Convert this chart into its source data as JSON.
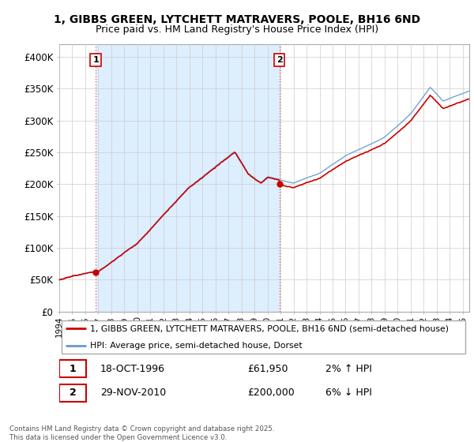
{
  "title1": "1, GIBBS GREEN, LYTCHETT MATRAVERS, POOLE, BH16 6ND",
  "title2": "Price paid vs. HM Land Registry's House Price Index (HPI)",
  "background_color": "#ffffff",
  "plot_bg_color": "#ffffff",
  "shaded_bg_color": "#ddeeff",
  "hatch_color": "#d8d8d8",
  "grid_color": "#cccccc",
  "sale1_date": 1996.8,
  "sale1_price": 61950,
  "sale1_label": "1",
  "sale2_date": 2010.92,
  "sale2_price": 200000,
  "sale2_label": "2",
  "legend_label_house": "1, GIBBS GREEN, LYTCHETT MATRAVERS, POOLE, BH16 6ND (semi-detached house)",
  "legend_label_hpi": "HPI: Average price, semi-detached house, Dorset",
  "copyright": "Contains HM Land Registry data © Crown copyright and database right 2025.\nThis data is licensed under the Open Government Licence v3.0.",
  "ylim_min": 0,
  "ylim_max": 420000,
  "xlim_min": 1994,
  "xlim_max": 2025.5,
  "hpi_line_color": "#6699cc",
  "house_line_color": "#cc0000",
  "marker_color": "#cc0000",
  "vline_color": "#ee6666",
  "yticks": [
    0,
    50000,
    100000,
    150000,
    200000,
    250000,
    300000,
    350000,
    400000
  ],
  "ytick_labels": [
    "£0",
    "£50K",
    "£100K",
    "£150K",
    "£200K",
    "£250K",
    "£300K",
    "£350K",
    "£400K"
  ]
}
